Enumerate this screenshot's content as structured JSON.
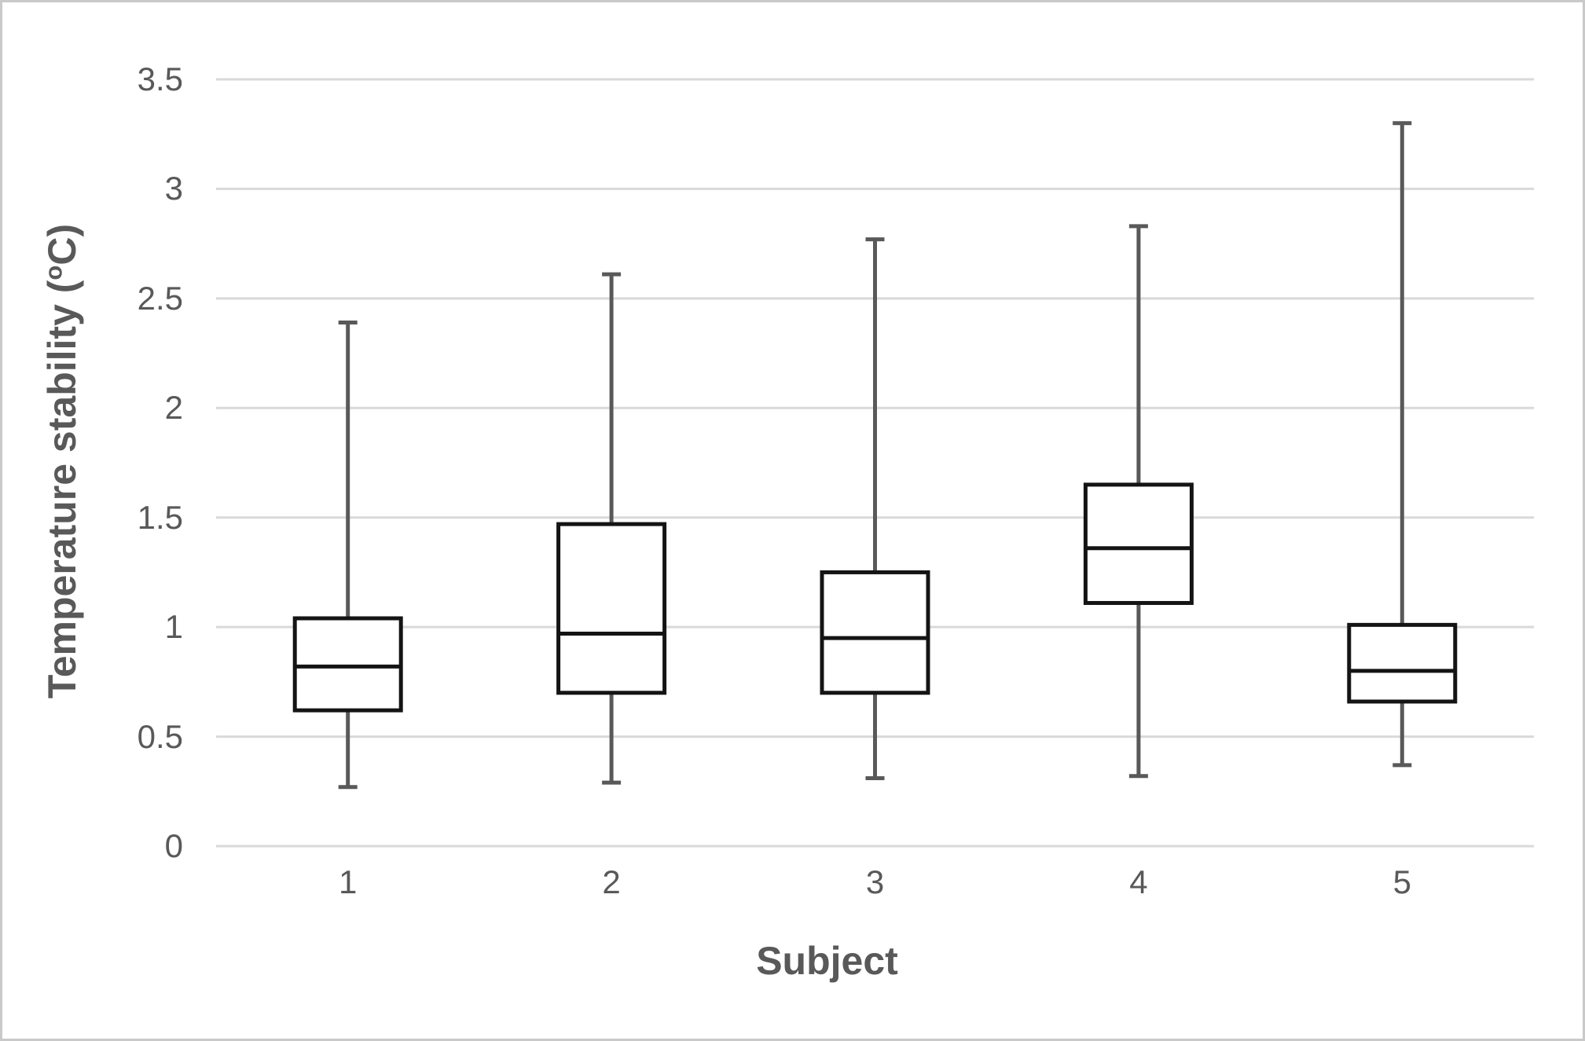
{
  "figure": {
    "background": "#ffffff",
    "border_color": "#c9c9c9"
  },
  "chart_data": {
    "type": "boxplot",
    "title": "",
    "xlabel": "Subject",
    "ylabel": "Temperature stability (oC)",
    "ylabel_parts": {
      "prefix": "Temperature stability (",
      "sup": "o",
      "suffix": "C)"
    },
    "categories": [
      "1",
      "2",
      "3",
      "4",
      "5"
    ],
    "y_tick_labels": [
      "0",
      "0.5",
      "1",
      "1.5",
      "2",
      "2.5",
      "3",
      "3.5"
    ],
    "y_ticks": [
      0,
      0.5,
      1,
      1.5,
      2,
      2.5,
      3,
      3.5
    ],
    "ylim": [
      0,
      3.5
    ],
    "grid": "horizontal",
    "legend": "none",
    "series": [
      {
        "subject": "1",
        "min": 0.27,
        "q1": 0.62,
        "median": 0.82,
        "q3": 1.04,
        "max": 2.39
      },
      {
        "subject": "2",
        "min": 0.29,
        "q1": 0.7,
        "median": 0.97,
        "q3": 1.47,
        "max": 2.61
      },
      {
        "subject": "3",
        "min": 0.31,
        "q1": 0.7,
        "median": 0.95,
        "q3": 1.25,
        "max": 2.77
      },
      {
        "subject": "4",
        "min": 0.32,
        "q1": 1.11,
        "median": 1.36,
        "q3": 1.65,
        "max": 2.83
      },
      {
        "subject": "5",
        "min": 0.37,
        "q1": 0.66,
        "median": 0.8,
        "q3": 1.01,
        "max": 3.3
      }
    ],
    "colors": {
      "box_fill": "#ffffff",
      "box_border": "#141414",
      "median": "#141414",
      "whisker": "#595959",
      "gridline": "#d9d9d9",
      "text": "#595959"
    }
  }
}
